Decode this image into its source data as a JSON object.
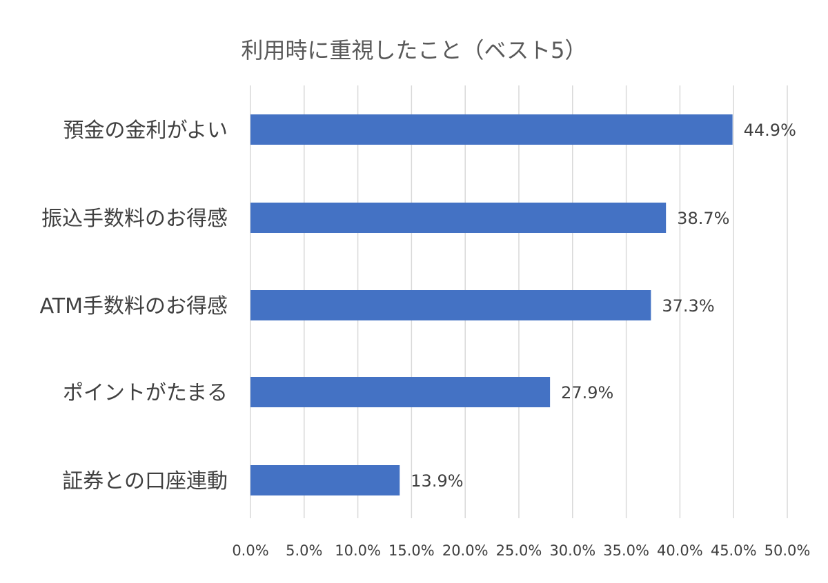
{
  "chart_data": {
    "type": "bar",
    "orientation": "horizontal",
    "title": "利用時に重視したこと（ベスト5）",
    "xlabel": "",
    "ylabel": "",
    "categories": [
      "預金の金利がよい",
      "振込手数料のお得感",
      "ATM手数料のお得感",
      "ポイントがたまる",
      "証券との口座連動"
    ],
    "values": [
      44.9,
      38.7,
      37.3,
      27.9,
      13.9
    ],
    "data_labels": [
      "44.9%",
      "38.7%",
      "37.3%",
      "27.9%",
      "13.9%"
    ],
    "xlim": [
      0,
      50
    ],
    "x_ticks": [
      0,
      5,
      10,
      15,
      20,
      25,
      30,
      35,
      40,
      45,
      50
    ],
    "x_tick_labels": [
      "0.0%",
      "5.0%",
      "10.0%",
      "15.0%",
      "20.0%",
      "25.0%",
      "30.0%",
      "35.0%",
      "40.0%",
      "45.0%",
      "50.0%"
    ],
    "grid": true,
    "legend": "none",
    "colors": {
      "bar": "#4472C4",
      "grid": "#D9D9D9",
      "text": "#404040",
      "title": "#595959"
    }
  }
}
